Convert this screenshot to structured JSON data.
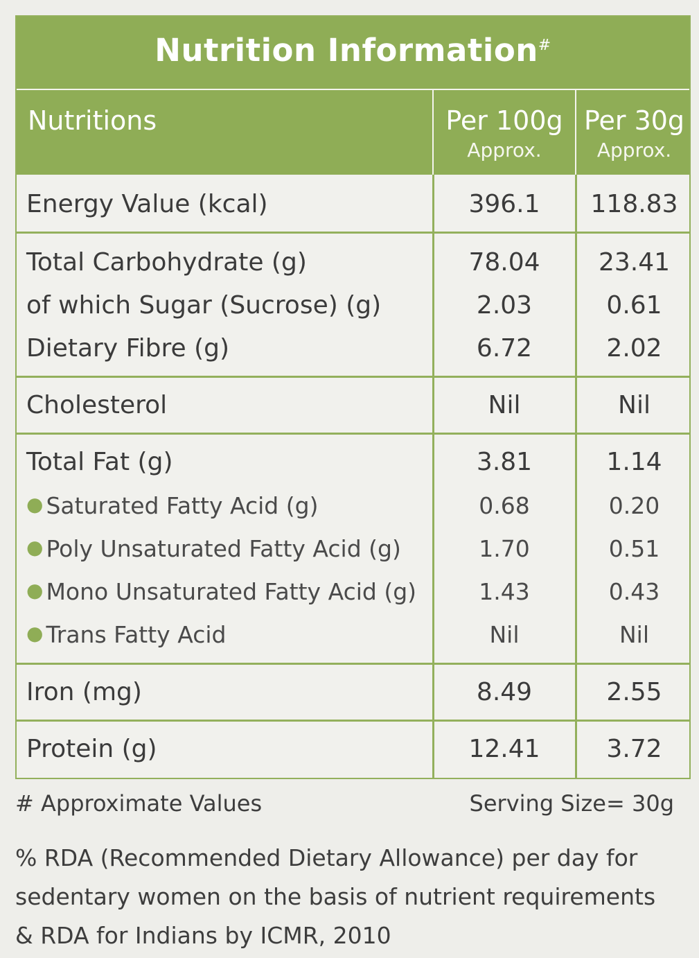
{
  "header": {
    "title": "Nutrition Information",
    "title_mark": "#"
  },
  "columns": {
    "name": "Nutritions",
    "col1": "Per 100g",
    "col1_sub": "Approx.",
    "col2": "Per 30g",
    "col2_sub": "Approx."
  },
  "rows": {
    "energy": {
      "name": "Energy Value (kcal)",
      "v1": "396.1",
      "v2": "118.83"
    },
    "carb": {
      "name": "Total Carbohydrate (g)",
      "v1": "78.04",
      "v2": "23.41"
    },
    "sugar": {
      "name": "of which Sugar (Sucrose) (g)",
      "v1": "2.03",
      "v2": "0.61"
    },
    "fibre": {
      "name": "Dietary Fibre (g)",
      "v1": "6.72",
      "v2": "2.02"
    },
    "cholesterol": {
      "name": "Cholesterol",
      "v1": "Nil",
      "v2": "Nil"
    },
    "fat": {
      "name": "Total Fat (g)",
      "v1": "3.81",
      "v2": "1.14"
    },
    "sfa": {
      "name": "Saturated Fatty Acid (g)",
      "v1": "0.68",
      "v2": "0.20"
    },
    "pufa": {
      "name": "Poly Unsaturated Fatty Acid (g)",
      "v1": "1.70",
      "v2": "0.51"
    },
    "mufa": {
      "name": "Mono Unsaturated Fatty Acid (g)",
      "v1": "1.43",
      "v2": "0.43"
    },
    "tfa": {
      "name": "Trans Fatty Acid",
      "v1": "Nil",
      "v2": "Nil"
    },
    "iron": {
      "name": "Iron (mg)",
      "v1": "8.49",
      "v2": "2.55"
    },
    "protein": {
      "name": "Protein (g)",
      "v1": "12.41",
      "v2": "3.72"
    }
  },
  "footer": {
    "approx": "# Approximate Values",
    "serving": "Serving Size= 30g",
    "note": "% RDA (Recommended Dietary Allowance) per day for sedentary women on the basis of nutrient requirements & RDA for Indians by ICMR, 2010"
  },
  "colors": {
    "accent": "#8fad56",
    "background": "#eeeeea",
    "text": "#3a3a3a"
  }
}
